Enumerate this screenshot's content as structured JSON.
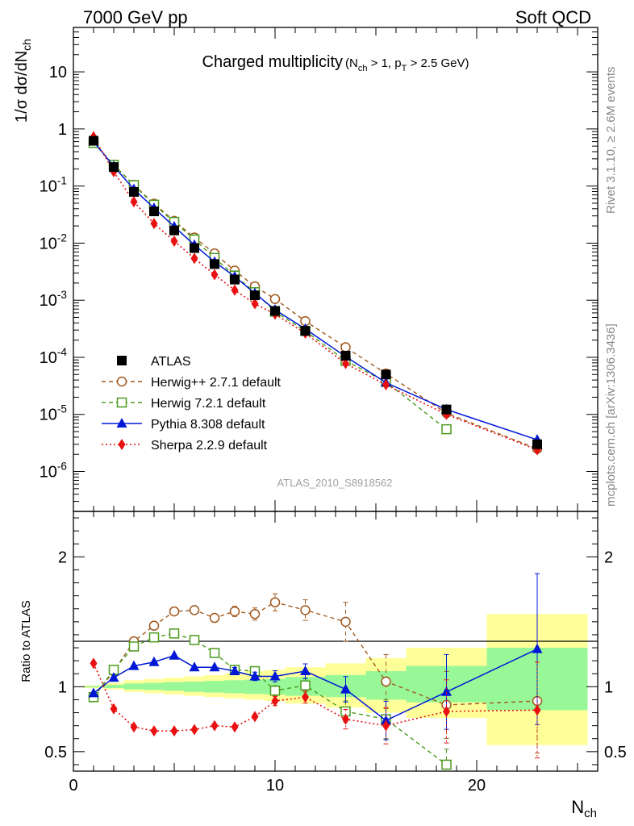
{
  "header": {
    "energy": "7000 GeV pp",
    "category": "Soft QCD",
    "rivet": "Rivet 3.1.10, ≥ 2.6M events",
    "source": "mcplots.cern.ch [arXiv:1306.3436]",
    "analysis_id": "ATLAS_2010_S8918562"
  },
  "colors": {
    "data": "#000000",
    "herwigpp": "#a0581e",
    "herwig7": "#4a9a1c",
    "pythia": "#0018d6",
    "sherpa": "#e81010",
    "band_outer": "#ffff9a",
    "band_inner": "#98f898"
  },
  "chart_data": [
    {
      "type": "line",
      "title": "Charged multiplicity",
      "title_sub": "(N_ch > 1, p_T > 2.5 GeV)",
      "xlabel": "",
      "ylabel": "1/σ dσ/dN_ch",
      "xlim": [
        0,
        26
      ],
      "ylim": [
        2e-07,
        60
      ],
      "yscale": "log",
      "x": [
        1,
        2,
        3,
        4,
        5,
        6,
        7,
        8,
        9,
        10,
        11.5,
        13.5,
        15.5,
        18.5,
        23
      ],
      "series": [
        {
          "name": "ATLAS",
          "style": "data",
          "values": [
            0.62,
            0.215,
            0.079,
            0.036,
            0.0167,
            0.0082,
            0.0043,
            0.0023,
            0.00122,
            0.00065,
            0.00029,
            0.000107,
            5e-05,
            1.22e-05,
            3e-06
          ]
        },
        {
          "name": "Herwig++ 2.7.1 default",
          "style": "herwigpp",
          "values": [
            0.57,
            0.235,
            0.105,
            0.049,
            0.0245,
            0.0125,
            0.0066,
            0.0033,
            0.00175,
            0.00105,
            0.00043,
            0.00015,
            5.2e-05,
            1.05e-05,
            2.5e-06
          ]
        },
        {
          "name": "Herwig 7.2.1 default",
          "style": "herwig7",
          "values": [
            0.57,
            0.235,
            0.104,
            0.047,
            0.0235,
            0.0116,
            0.0055,
            0.0027,
            0.00138,
            0.00063,
            0.00029,
            8.7e-05,
            3.7e-05,
            5.5e-06,
            null
          ]
        },
        {
          "name": "Pythia 8.308 default",
          "style": "pythia",
          "values": [
            0.6,
            0.222,
            0.088,
            0.041,
            0.0195,
            0.0093,
            0.0047,
            0.0026,
            0.00132,
            0.00068,
            0.000315,
            0.000103,
            3.6e-05,
            1.22e-05,
            3.6e-06
          ]
        },
        {
          "name": "Sherpa 2.2.9 default",
          "style": "sherpa",
          "values": [
            0.73,
            0.178,
            0.053,
            0.022,
            0.0108,
            0.0054,
            0.0028,
            0.0015,
            0.00087,
            0.00057,
            0.000265,
            7.8e-05,
            3.3e-05,
            1e-05,
            2.4e-06
          ]
        }
      ],
      "legend": "bottom-left",
      "y_ticks": [
        "10^{-6}",
        "10^{-5}",
        "10^{-4}",
        "10^{-3}",
        "10^{-2}",
        "10^{-1}",
        "1",
        "10"
      ]
    },
    {
      "type": "line",
      "xlabel": "N_ch",
      "ylabel": "Ratio to ATLAS",
      "xlim": [
        0,
        26
      ],
      "ylim": [
        0.35,
        2.35
      ],
      "y_ticks": [
        "0.5",
        "1",
        "2"
      ],
      "x_ticks": [
        "0",
        "10",
        "20"
      ],
      "x": [
        1,
        2,
        3,
        4,
        5,
        6,
        7,
        8,
        9,
        10,
        11.5,
        13.5,
        15.5,
        18.5,
        23
      ],
      "bins": [
        [
          0.5,
          1.5
        ],
        [
          1.5,
          2.5
        ],
        [
          2.5,
          3.5
        ],
        [
          3.5,
          4.5
        ],
        [
          4.5,
          5.5
        ],
        [
          5.5,
          6.5
        ],
        [
          6.5,
          7.5
        ],
        [
          7.5,
          8.5
        ],
        [
          8.5,
          9.5
        ],
        [
          9.5,
          10.5
        ],
        [
          10.5,
          12.5
        ],
        [
          12.5,
          14.5
        ],
        [
          14.5,
          16.5
        ],
        [
          16.5,
          20.5
        ],
        [
          20.5,
          25.5
        ]
      ],
      "band_outer": [
        [
          0.99,
          1.01
        ],
        [
          0.98,
          1.03
        ],
        [
          0.96,
          1.05
        ],
        [
          0.95,
          1.06
        ],
        [
          0.94,
          1.07
        ],
        [
          0.93,
          1.08
        ],
        [
          0.92,
          1.09
        ],
        [
          0.91,
          1.1
        ],
        [
          0.9,
          1.12
        ],
        [
          0.89,
          1.13
        ],
        [
          0.87,
          1.15
        ],
        [
          0.84,
          1.18
        ],
        [
          0.8,
          1.22
        ],
        [
          0.76,
          1.3
        ],
        [
          0.55,
          1.56
        ]
      ],
      "band_inner": [
        [
          0.995,
          1.005
        ],
        [
          0.99,
          1.015
        ],
        [
          0.98,
          1.025
        ],
        [
          0.975,
          1.03
        ],
        [
          0.97,
          1.035
        ],
        [
          0.96,
          1.04
        ],
        [
          0.955,
          1.045
        ],
        [
          0.95,
          1.05
        ],
        [
          0.945,
          1.055
        ],
        [
          0.94,
          1.06
        ],
        [
          0.93,
          1.075
        ],
        [
          0.92,
          1.09
        ],
        [
          0.9,
          1.12
        ],
        [
          0.88,
          1.16
        ],
        [
          0.82,
          1.3
        ]
      ],
      "series": [
        {
          "name": "Herwig++ 2.7.1 default",
          "style": "herwigpp",
          "values": [
            0.92,
            1.12,
            1.35,
            1.47,
            1.58,
            1.59,
            1.53,
            1.58,
            1.56,
            1.65,
            1.59,
            1.5,
            1.04,
            0.86,
            0.89
          ]
        },
        {
          "name": "Herwig 7.2.1 default",
          "style": "herwig7",
          "values": [
            0.92,
            1.13,
            1.31,
            1.38,
            1.41,
            1.36,
            1.26,
            1.13,
            1.12,
            0.97,
            1.01,
            0.81,
            0.75,
            0.4,
            null
          ]
        },
        {
          "name": "Pythia 8.308 default",
          "style": "pythia",
          "values": [
            0.95,
            1.07,
            1.16,
            1.19,
            1.24,
            1.15,
            1.15,
            1.12,
            1.08,
            1.08,
            1.12,
            0.98,
            0.74,
            0.96,
            1.29
          ]
        },
        {
          "name": "Sherpa 2.2.9 default",
          "style": "sherpa",
          "values": [
            1.18,
            0.83,
            0.69,
            0.66,
            0.66,
            0.67,
            0.7,
            0.69,
            0.77,
            0.89,
            0.92,
            0.75,
            0.7,
            0.81,
            0.82
          ]
        }
      ]
    }
  ]
}
